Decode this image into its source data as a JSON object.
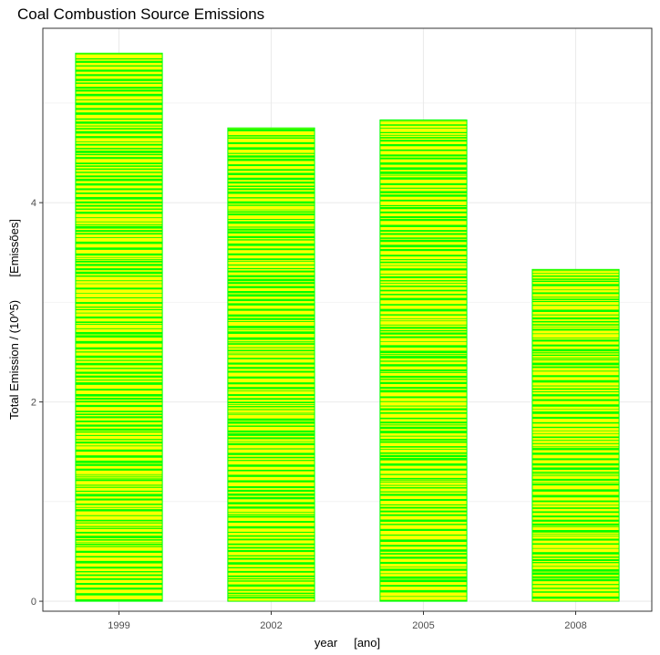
{
  "chart_data": {
    "type": "bar",
    "title": "Coal Combustion Source Emissions",
    "xlabel": "year     [ano]",
    "ylabel": "Total Emission / (10^5)       [Emissões]",
    "categories": [
      "1999",
      "2002",
      "2005",
      "2008"
    ],
    "values": [
      5.5,
      4.75,
      4.83,
      3.33
    ],
    "ylim": [
      -0.1,
      5.75
    ],
    "yticks": [
      0,
      2,
      4
    ],
    "grid": true,
    "legend": "none",
    "colors": {
      "fill": "#ffff00",
      "stripe": "#00ff00",
      "panel_border": "#333333",
      "grid": "#ebebeb"
    }
  }
}
